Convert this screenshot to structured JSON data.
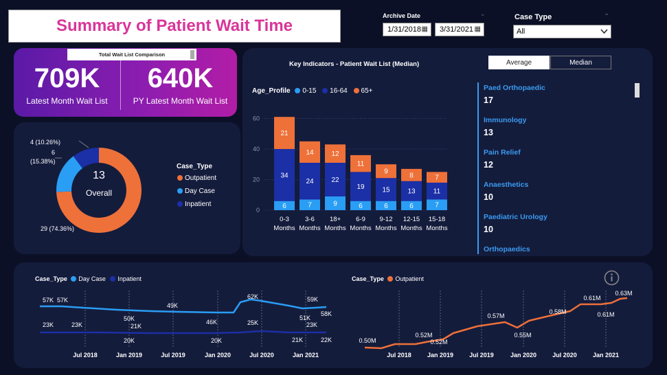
{
  "title": "Summary of Patient Wait Time",
  "filters": {
    "archive_label": "Archive Date",
    "date_from": "1/31/2018",
    "date_to": "3/31/2021",
    "case_type_label": "Case Type",
    "case_type_value": "All"
  },
  "kpi": {
    "tooltip": "Total Wait List Comparison",
    "latest_value": "709K",
    "latest_label": "Latest Month Wait List",
    "py_value": "640K",
    "py_label": "PY Latest Month Wait List"
  },
  "donut": {
    "center_value": "13",
    "center_label": "Overall",
    "legend_title": "Case_Type",
    "labels": {
      "inpatient": "4 (10.26%)",
      "daycase_count": "6",
      "daycase_pct": "(15.38%)",
      "outpatient": "29 (74.36%)"
    },
    "colors": {
      "outpatient": "#ee7139",
      "daycase": "#2a9df4",
      "inpatient": "#1b2fa6"
    }
  },
  "key_indicators": {
    "title": "Key Indicators - Patient Wait List (Median)",
    "tab_average": "Average",
    "tab_median": "Median",
    "legend_title": "Age_Profile",
    "legend": [
      "0-15",
      "16-64",
      "65+"
    ],
    "legend_colors": [
      "#2a9df4",
      "#1b2fa6",
      "#ee7139"
    ]
  },
  "indicators": [
    {
      "name": "Paed Orthopaedic",
      "value": "17"
    },
    {
      "name": "Immunology",
      "value": "13"
    },
    {
      "name": "Pain Relief",
      "value": "12"
    },
    {
      "name": "Anaesthetics",
      "value": "10"
    },
    {
      "name": "Paediatric Urology",
      "value": "10"
    },
    {
      "name": "Orthopaedics",
      "value": ""
    }
  ],
  "line_left": {
    "legend_title": "Case_Type",
    "legend": [
      "Day Case",
      "Inpatient"
    ]
  },
  "line_right": {
    "legend_title": "Case_Type",
    "legend": [
      "Outpatient"
    ]
  },
  "chart_data": [
    {
      "type": "bar",
      "title": "Key Indicators - Patient Wait List (Median)",
      "categories": [
        "0-3 Months",
        "3-6 Months",
        "18+ Months",
        "6-9 Months",
        "9-12 Months",
        "12-15 Months",
        "15-18 Months"
      ],
      "series": [
        {
          "name": "0-15",
          "values": [
            6,
            7,
            9,
            6,
            6,
            6,
            7
          ]
        },
        {
          "name": "16-64",
          "values": [
            34,
            24,
            22,
            19,
            15,
            13,
            11
          ]
        },
        {
          "name": "65+",
          "values": [
            21,
            14,
            12,
            11,
            9,
            8,
            7
          ]
        }
      ],
      "yticks": [
        0,
        20,
        40,
        60
      ],
      "ylim": [
        0,
        62
      ]
    },
    {
      "type": "line",
      "xticks": [
        "Jul 2018",
        "Jan 2019",
        "Jul 2019",
        "Jan 2020",
        "Jul 2020",
        "Jan 2021"
      ],
      "series": [
        {
          "name": "Day Case",
          "labels": [
            "57K",
            "57K",
            "50K",
            "49K",
            "46K",
            "62K",
            "51K",
            "59K",
            "58K"
          ]
        },
        {
          "name": "Inpatient",
          "labels": [
            "23K",
            "23K",
            "20K",
            "21K",
            "20K",
            "25K",
            "21K",
            "23K",
            "22K"
          ]
        }
      ]
    },
    {
      "type": "line",
      "xticks": [
        "Jul 2018",
        "Jan 2019",
        "Jul 2019",
        "Jan 2020",
        "Jul 2020",
        "Jan 2021"
      ],
      "series": [
        {
          "name": "Outpatient",
          "labels": [
            "0.50M",
            "0.52M",
            "0.52M",
            "0.57M",
            "0.55M",
            "0.58M",
            "0.61M",
            "0.61M",
            "0.63M"
          ]
        }
      ]
    }
  ]
}
